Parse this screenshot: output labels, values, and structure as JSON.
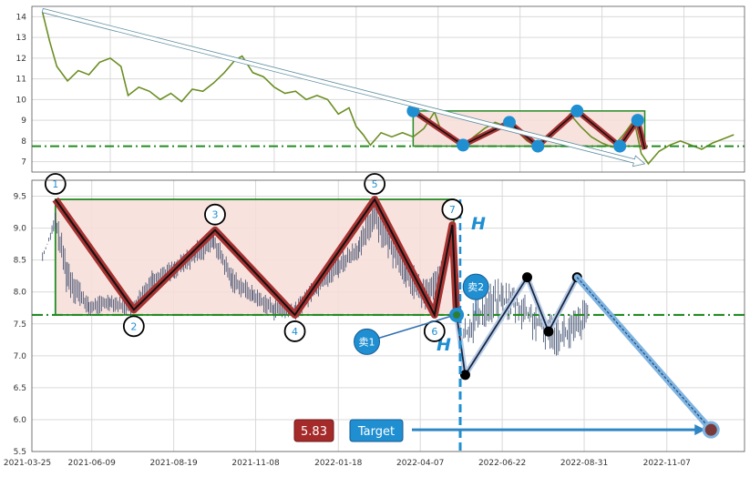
{
  "colors": {
    "price_line": "#6b8e23",
    "candles": "#3a4a6b",
    "box_fill": "#f7ddd8",
    "box_stroke": "#228b22",
    "neckline": "#228b22",
    "zigzag_outer": "#a83232",
    "zigzag_inner": "#111111",
    "marker_blue": "#1f8fd1",
    "target_arrow": "#2f86c4",
    "price_badge": "#a52a2a",
    "height_marker": "#1f8fd1"
  },
  "chart_data": [
    {
      "type": "line",
      "panel": "overview",
      "y_ticks": [
        "7",
        "8",
        "9",
        "10",
        "11",
        "12",
        "13",
        "14"
      ],
      "ylim": [
        6.5,
        14.5
      ],
      "xlim": [
        0,
        100
      ],
      "grid": true,
      "series_points": [
        [
          1.5,
          14.2
        ],
        [
          2.5,
          12.8
        ],
        [
          3.5,
          11.6
        ],
        [
          5,
          10.9
        ],
        [
          6.5,
          11.4
        ],
        [
          8,
          11.2
        ],
        [
          9.5,
          11.8
        ],
        [
          11,
          12.0
        ],
        [
          12.5,
          11.6
        ],
        [
          13.5,
          10.2
        ],
        [
          15,
          10.6
        ],
        [
          16.5,
          10.4
        ],
        [
          18,
          10.0
        ],
        [
          19.5,
          10.3
        ],
        [
          21,
          9.9
        ],
        [
          22.5,
          10.5
        ],
        [
          24,
          10.4
        ],
        [
          25.5,
          10.8
        ],
        [
          27,
          11.3
        ],
        [
          28.5,
          11.9
        ],
        [
          29.5,
          12.1
        ],
        [
          31,
          11.3
        ],
        [
          32.5,
          11.1
        ],
        [
          34,
          10.6
        ],
        [
          35.5,
          10.3
        ],
        [
          37,
          10.4
        ],
        [
          38.5,
          10.0
        ],
        [
          40,
          10.2
        ],
        [
          41.5,
          10.0
        ],
        [
          43,
          9.3
        ],
        [
          44.5,
          9.6
        ],
        [
          45.5,
          8.7
        ],
        [
          46.5,
          8.3
        ],
        [
          47.5,
          7.8
        ],
        [
          49,
          8.4
        ],
        [
          50.5,
          8.2
        ],
        [
          52,
          8.4
        ],
        [
          53.5,
          8.2
        ],
        [
          55,
          8.6
        ],
        [
          56.5,
          9.4
        ],
        [
          57.5,
          8.4
        ],
        [
          59,
          8.1
        ],
        [
          60.5,
          7.8
        ],
        [
          62,
          8.2
        ],
        [
          63.5,
          8.6
        ],
        [
          65,
          8.9
        ],
        [
          66.5,
          8.7
        ],
        [
          68,
          8.5
        ],
        [
          69.5,
          8.0
        ],
        [
          71,
          7.7
        ],
        [
          72.5,
          8.3
        ],
        [
          74,
          8.6
        ],
        [
          75.5,
          9.3
        ],
        [
          77,
          8.7
        ],
        [
          78.5,
          8.2
        ],
        [
          80,
          7.9
        ],
        [
          81.5,
          7.7
        ],
        [
          83,
          8.3
        ],
        [
          84.5,
          9.0
        ],
        [
          85.5,
          7.4
        ],
        [
          86.5,
          6.9
        ],
        [
          88,
          7.5
        ],
        [
          89.5,
          7.8
        ],
        [
          91,
          8.0
        ],
        [
          92.5,
          7.8
        ],
        [
          94,
          7.6
        ],
        [
          95.5,
          7.9
        ],
        [
          97,
          8.1
        ],
        [
          98.5,
          8.3
        ]
      ],
      "trend_arrow": {
        "from": [
          1.5,
          14.3
        ],
        "to": [
          86,
          6.9
        ]
      },
      "neckline": 7.75,
      "box": {
        "x0": 53.5,
        "x1": 86,
        "y0": 7.75,
        "y1": 9.45
      },
      "zigzag": [
        [
          53.5,
          9.45
        ],
        [
          60.5,
          7.8
        ],
        [
          67,
          8.9
        ],
        [
          71,
          7.75
        ],
        [
          76.5,
          9.45
        ],
        [
          82.5,
          7.75
        ],
        [
          85,
          9.0
        ],
        [
          86,
          7.6
        ]
      ]
    },
    {
      "type": "table",
      "panel": "detail",
      "x_ticks": [
        "2021-03-25",
        "2021-06-09",
        "2021-08-19",
        "2021-11-08",
        "2022-01-18",
        "2022-04-07",
        "2022-06-22",
        "2022-08-31",
        "2022-11-07"
      ],
      "y_ticks": [
        "5.5",
        "6.0",
        "6.5",
        "7.0",
        "7.5",
        "8.0",
        "8.5",
        "9.0",
        "9.5"
      ],
      "ylim": [
        5.5,
        9.75
      ],
      "xlim": [
        0,
        100
      ],
      "grid": true,
      "neckline": 7.64,
      "box": {
        "x0": 3.3,
        "x1": 59.2,
        "y0": 7.64,
        "y1": 9.45
      },
      "pivots": [
        {
          "label": "1",
          "x": 3.3,
          "y": 9.45,
          "pos": "above"
        },
        {
          "label": "2",
          "x": 14.3,
          "y": 7.72,
          "pos": "below"
        },
        {
          "label": "3",
          "x": 25.7,
          "y": 8.97,
          "pos": "above"
        },
        {
          "label": "4",
          "x": 36.9,
          "y": 7.64,
          "pos": "below"
        },
        {
          "label": "5",
          "x": 48.1,
          "y": 9.45,
          "pos": "above"
        },
        {
          "label": "6",
          "x": 56.5,
          "y": 7.64,
          "pos": "below"
        },
        {
          "label": "7",
          "x": 59.0,
          "y": 9.05,
          "pos": "above"
        }
      ],
      "pattern_end": {
        "x": 59.6,
        "y": 7.64
      },
      "candle_ranges": [
        [
          1.5,
          8.45,
          8.65,
          8.7
        ],
        [
          3.3,
          9.3,
          8.9,
          9.5
        ],
        [
          5,
          8.6,
          7.9,
          8.3
        ],
        [
          8,
          7.9,
          7.6,
          7.8
        ],
        [
          11,
          8.0,
          7.7,
          7.95
        ],
        [
          14,
          7.85,
          7.6,
          7.7
        ],
        [
          17,
          8.4,
          8.0,
          8.3
        ],
        [
          20,
          8.5,
          8.2,
          8.35
        ],
        [
          23,
          8.8,
          8.4,
          8.55
        ],
        [
          25.5,
          9.0,
          8.6,
          8.8
        ],
        [
          28,
          8.4,
          8.0,
          8.2
        ],
        [
          31,
          8.1,
          7.8,
          7.9
        ],
        [
          34,
          7.9,
          7.55,
          7.7
        ],
        [
          37,
          7.85,
          7.55,
          7.7
        ],
        [
          40,
          8.3,
          7.9,
          8.1
        ],
        [
          43,
          8.6,
          8.2,
          8.4
        ],
        [
          46,
          8.9,
          8.5,
          8.7
        ],
        [
          48,
          9.55,
          8.9,
          9.2
        ],
        [
          50,
          9.1,
          8.5,
          8.8
        ],
        [
          52.5,
          8.6,
          8.0,
          8.3
        ],
        [
          55,
          8.2,
          7.7,
          7.9
        ],
        [
          57,
          8.4,
          7.9,
          8.5
        ],
        [
          58.5,
          9.1,
          8.4,
          8.8
        ]
      ],
      "breakout_path": [
        [
          59.6,
          7.64
        ],
        [
          60.8,
          6.7
        ],
        [
          69.5,
          8.23
        ],
        [
          72.5,
          7.38
        ],
        [
          76.5,
          8.23
        ]
      ],
      "target_arrow": {
        "from": [
          76.5,
          8.23
        ],
        "to": [
          95.3,
          5.84
        ]
      },
      "height_line_x": 60.1,
      "height_label": "H",
      "sell_markers": [
        {
          "label": "卖1",
          "cx": 47.0,
          "cy": 7.22,
          "tx": 58.8,
          "ty": 7.62
        },
        {
          "label": "卖2",
          "cx": 62.3,
          "cy": 8.08,
          "tx": 62.3,
          "ty": 7.64
        }
      ],
      "target_price": "5.83",
      "target_label": "Target",
      "target_point": {
        "x": 95.3,
        "y": 5.84
      }
    }
  ]
}
